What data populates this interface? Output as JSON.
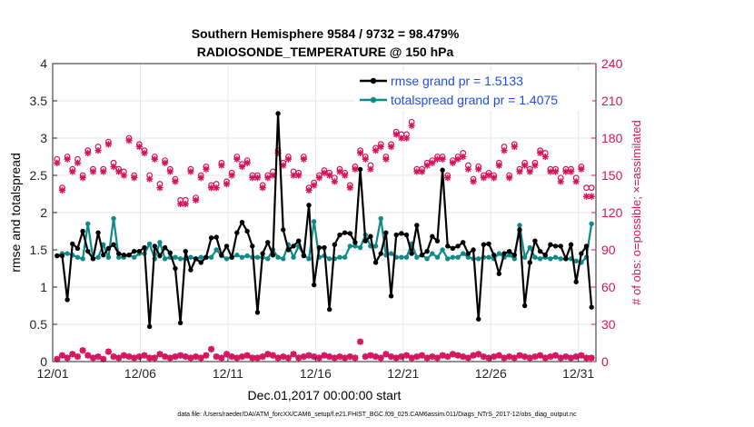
{
  "chart_data": {
    "type": "line",
    "title": "Southern Hemisphere 9584 / 9732 = 98.479%",
    "subtitle": "RADIOSONDE_TEMPERATURE @ 150 hPa",
    "xlabel": "Dec.01,2017 00:00:00 start",
    "ylabel": "rmse and totalspread",
    "y2label": "# of obs: o=possible; ×=assimilated",
    "footer": "data file: /Users/raeder/DAI/ATM_forcXX/CAM6_setup/f.e21.FHIST_BGC.f09_025.CAM6assim.011/Diags_NTrS_2017-12/obs_diag_output.nc",
    "xlim": [
      1,
      32
    ],
    "ylim": [
      0,
      4
    ],
    "y2lim": [
      0,
      240
    ],
    "xticks": [
      1,
      6,
      11,
      16,
      21,
      26,
      31
    ],
    "xtick_labels": [
      "12/01",
      "12/06",
      "12/11",
      "12/16",
      "12/21",
      "12/26",
      "12/31"
    ],
    "yticks": [
      0,
      0.5,
      1,
      1.5,
      2,
      2.5,
      3,
      3.5,
      4
    ],
    "ytick_labels": [
      "0",
      "0.5",
      "1",
      "1.5",
      "2",
      "2.5",
      "3",
      "3.5",
      "4"
    ],
    "y2ticks": [
      0,
      30,
      60,
      90,
      120,
      150,
      180,
      210,
      240
    ],
    "y2tick_labels": [
      "0",
      "30",
      "60",
      "90",
      "120",
      "150",
      "180",
      "210",
      "240"
    ],
    "legend_location": "top-right",
    "colors": {
      "rmse": "#000000",
      "spread": "#0e8a8a",
      "obs": "#d6135a",
      "legend_text": "#1f4fe0"
    },
    "series": [
      {
        "name": "rmse grand pr = 1.5133",
        "axis": "left",
        "values": [
          1.42,
          1.42,
          0.83,
          1.58,
          1.52,
          1.75,
          1.48,
          1.38,
          1.73,
          1.43,
          1.52,
          1.57,
          1.45,
          1.43,
          1.43,
          1.48,
          1.48,
          1.53,
          0.47,
          1.55,
          1.42,
          1.53,
          1.46,
          1.25,
          0.52,
          1.48,
          1.23,
          1.38,
          1.33,
          1.4,
          1.66,
          1.67,
          1.43,
          1.55,
          1.4,
          1.73,
          1.87,
          1.75,
          1.55,
          0.66,
          1.45,
          1.6,
          1.43,
          3.33,
          1.77,
          1.5,
          1.55,
          1.62,
          1.42,
          2.1,
          1.03,
          1.53,
          1.53,
          0.7,
          1.57,
          1.7,
          1.73,
          1.72,
          1.6,
          2.58,
          1.62,
          1.68,
          1.33,
          1.45,
          1.73,
          0.88,
          1.7,
          1.72,
          1.7,
          1.45,
          1.83,
          1.43,
          1.48,
          1.68,
          1.62,
          2.57,
          1.55,
          1.52,
          1.55,
          1.6,
          1.45,
          1.5,
          0.57,
          1.57,
          1.58,
          1.43,
          1.18,
          1.45,
          1.48,
          1.43,
          1.77,
          0.75,
          1.33,
          1.62,
          1.48,
          1.43,
          1.57,
          1.55,
          1.55,
          1.38,
          1.57,
          1.07,
          1.45,
          1.55,
          0.73
        ]
      },
      {
        "name": "totalspread grand pr = 1.4075",
        "axis": "left",
        "values": [
          1.42,
          1.45,
          1.45,
          1.43,
          1.4,
          1.38,
          1.85,
          1.38,
          1.4,
          1.57,
          1.4,
          1.92,
          1.4,
          1.4,
          1.43,
          1.4,
          1.45,
          1.45,
          1.58,
          1.38,
          1.6,
          1.38,
          1.4,
          1.4,
          1.38,
          1.38,
          1.4,
          1.38,
          1.4,
          1.4,
          1.4,
          1.5,
          1.42,
          1.38,
          1.4,
          1.43,
          1.4,
          1.42,
          1.4,
          1.4,
          1.4,
          1.38,
          1.5,
          1.4,
          1.38,
          1.57,
          1.4,
          1.55,
          1.43,
          1.38,
          1.88,
          1.4,
          1.42,
          1.38,
          1.38,
          1.4,
          1.4,
          1.55,
          1.55,
          1.53,
          1.7,
          1.55,
          1.55,
          1.92,
          1.43,
          1.45,
          1.4,
          1.4,
          1.4,
          1.58,
          1.4,
          1.43,
          1.38,
          1.45,
          1.4,
          1.5,
          1.38,
          1.4,
          1.4,
          1.45,
          1.4,
          1.38,
          1.38,
          1.4,
          1.4,
          1.38,
          1.45,
          1.4,
          1.43,
          1.38,
          1.83,
          1.4,
          1.53,
          1.4,
          1.38,
          1.4,
          1.38,
          1.4,
          1.38,
          1.38,
          1.38,
          1.35,
          1.33,
          1.4,
          1.85
        ]
      }
    ],
    "obs_possible": {
      "name": "possible",
      "axis": "right",
      "values": [
        163,
        140,
        165,
        155,
        163,
        150,
        170,
        155,
        173,
        155,
        177,
        160,
        155,
        153,
        180,
        150,
        175,
        170,
        150,
        165,
        143,
        162,
        155,
        147,
        130,
        130,
        155,
        132,
        150,
        157,
        142,
        143,
        160,
        145,
        152,
        165,
        159,
        162,
        150,
        150,
        142,
        150,
        153,
        170,
        160,
        165,
        153,
        152,
        165,
        140,
        144,
        150,
        154,
        152,
        148,
        155,
        152,
        142,
        157,
        170,
        165,
        158,
        172,
        175,
        165,
        175,
        185,
        183,
        183,
        193,
        155,
        155,
        160,
        162,
        165,
        165,
        150,
        162,
        165,
        168,
        158,
        147,
        157,
        150,
        152,
        150,
        160,
        173,
        150,
        175,
        155,
        160,
        155,
        160,
        170,
        168,
        155,
        155,
        148,
        155,
        155,
        148,
        157,
        140,
        140
      ],
      "obs_assimilated": [
        160,
        138,
        163,
        153,
        160,
        148,
        168,
        153,
        170,
        153,
        175,
        157,
        153,
        150,
        178,
        148,
        173,
        168,
        147,
        163,
        140,
        160,
        153,
        145,
        127,
        127,
        153,
        130,
        148,
        155,
        140,
        140,
        158,
        143,
        150,
        163,
        157,
        160,
        148,
        148,
        140,
        148,
        150,
        168,
        158,
        163,
        150,
        150,
        163,
        138,
        142,
        148,
        152,
        150,
        145,
        153,
        150,
        140,
        155,
        168,
        163,
        155,
        170,
        173,
        163,
        173,
        183,
        180,
        180,
        190,
        153,
        153,
        158,
        160,
        163,
        163,
        148,
        160,
        163,
        165,
        155,
        145,
        155,
        148,
        150,
        148,
        158,
        170,
        148,
        173,
        153,
        158,
        153,
        158,
        168,
        165,
        153,
        153,
        145,
        153,
        153,
        145,
        155,
        133,
        133
      ]
    },
    "obs_small": {
      "values": [
        2,
        5,
        3,
        6,
        4,
        9,
        5,
        3,
        4,
        2,
        8,
        4,
        3,
        5,
        4,
        3,
        4,
        5,
        3,
        3,
        6,
        4,
        3,
        4,
        5,
        4,
        3,
        4,
        3,
        5,
        10,
        4,
        3,
        6,
        4,
        3,
        4,
        5,
        3,
        3,
        4,
        6,
        5,
        3,
        4,
        3,
        6,
        3,
        4,
        5,
        4,
        3,
        5,
        4,
        3,
        4,
        3,
        4,
        3,
        16,
        4,
        5,
        4,
        3,
        6,
        4,
        3,
        4,
        5,
        3,
        4,
        5,
        3,
        4,
        3,
        5,
        4,
        6,
        5,
        4,
        3,
        5,
        6,
        4,
        3,
        4,
        5,
        3,
        4,
        3,
        5,
        4,
        3,
        4,
        5,
        3,
        4,
        5,
        3,
        4,
        3,
        4,
        5,
        3,
        3
      ]
    }
  }
}
